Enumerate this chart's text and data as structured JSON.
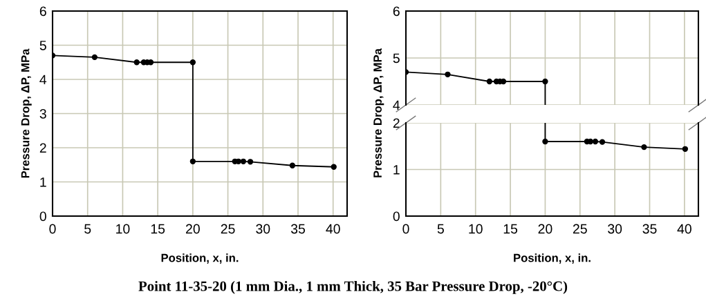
{
  "chart_data": [
    {
      "type": "line",
      "xlabel": "Position, x, in.",
      "ylabel": "Pressure Drop, ΔP, MPa",
      "xlim": [
        0,
        42
      ],
      "xticks": [
        0,
        5,
        10,
        15,
        20,
        25,
        30,
        35,
        40
      ],
      "ylim": [
        0,
        6
      ],
      "yticks": [
        0,
        1,
        2,
        3,
        4,
        5,
        6
      ],
      "grid": true,
      "marker": "circle",
      "line_style": "solid",
      "annotations": [
        "Point 11-35-20 (1 mm Dia., 1 mm Thick, 35 Bar Pressure Drop, -20°C)"
      ],
      "series": [
        {
          "color": "#000000",
          "x": [
            0,
            6,
            12,
            13,
            13.5,
            14,
            20,
            20,
            26,
            26.5,
            27.2,
            28.2,
            34.2,
            40.1
          ],
          "values": [
            4.7,
            4.65,
            4.5,
            4.5,
            4.5,
            4.5,
            4.5,
            1.6,
            1.6,
            1.6,
            1.6,
            1.59,
            1.48,
            1.44
          ]
        }
      ]
    },
    {
      "type": "line",
      "xlim": [
        0,
        42
      ],
      "xticks": [
        0,
        5,
        10,
        15,
        20,
        25,
        30,
        35,
        40
      ],
      "ylim": [
        4,
        6
      ],
      "yticks": [
        4,
        5,
        6
      ],
      "grid": true,
      "marker": "circle",
      "line_style": "solid",
      "tick_labels": "y",
      "series": [
        {
          "color": "#000000",
          "x": [
            0,
            6,
            12,
            13,
            13.5,
            14,
            20
          ],
          "values": [
            4.7,
            4.65,
            4.5,
            4.5,
            4.5,
            4.5,
            4.5
          ]
        }
      ]
    },
    {
      "type": "line",
      "xlabel": "Position, x, in.",
      "ylabel": "Pressure Drop, ΔP, MPa",
      "xlim": [
        0,
        42
      ],
      "xticks": [
        0,
        5,
        10,
        15,
        20,
        25,
        30,
        35,
        40
      ],
      "ylim": [
        0,
        2
      ],
      "yticks": [
        0,
        1,
        2
      ],
      "grid": true,
      "marker": "circle",
      "line_style": "solid",
      "series": [
        {
          "color": "#000000",
          "x": [
            20,
            26,
            26.5,
            27.2,
            28.2,
            34.2,
            40.1
          ],
          "values": [
            1.6,
            1.6,
            1.6,
            1.6,
            1.59,
            1.48,
            1.44
          ]
        }
      ]
    }
  ]
}
